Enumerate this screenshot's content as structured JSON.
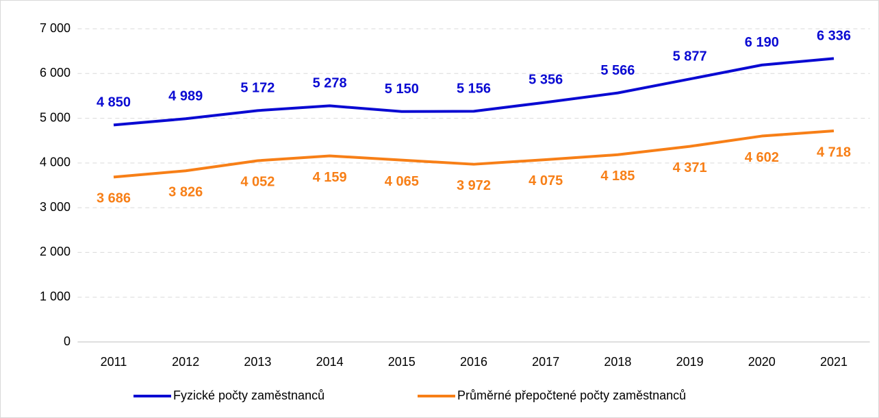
{
  "chart_data": {
    "type": "line",
    "categories": [
      "2011",
      "2012",
      "2013",
      "2014",
      "2015",
      "2016",
      "2017",
      "2018",
      "2019",
      "2020",
      "2021"
    ],
    "series": [
      {
        "name": "Fyzické počty zaměstnanců",
        "color": "#0a0ad2",
        "values": [
          4850,
          4989,
          5172,
          5278,
          5150,
          5156,
          5356,
          5566,
          5877,
          6190,
          6336
        ],
        "value_labels": [
          "4 850",
          "4 989",
          "5 172",
          "5 278",
          "5 150",
          "5 156",
          "5 356",
          "5 566",
          "5 877",
          "6 190",
          "6 336"
        ]
      },
      {
        "name": "Průměrné přepočtené počty zaměstnanců",
        "color": "#f77f17",
        "values": [
          3686,
          3826,
          4052,
          4159,
          4065,
          3972,
          4075,
          4185,
          4371,
          4602,
          4718
        ],
        "value_labels": [
          "3 686",
          "3 826",
          "4 052",
          "4 159",
          "4 065",
          "3 972",
          "4 075",
          "4 185",
          "4 371",
          "4 602",
          "4 718"
        ]
      }
    ],
    "ylim": [
      0,
      7000
    ],
    "yticks": [
      0,
      {
        "value": 1000,
        "label": "1 000"
      },
      {
        "value": 2000,
        "label": "2 000"
      },
      {
        "value": 3000,
        "label": "3 000"
      },
      {
        "value": 4000,
        "label": "4 000"
      },
      {
        "value": 5000,
        "label": "5 000"
      },
      {
        "value": 6000,
        "label": "6 000"
      },
      {
        "value": 7000,
        "label": "7 000"
      }
    ],
    "grid": true,
    "legend": "bottom"
  }
}
